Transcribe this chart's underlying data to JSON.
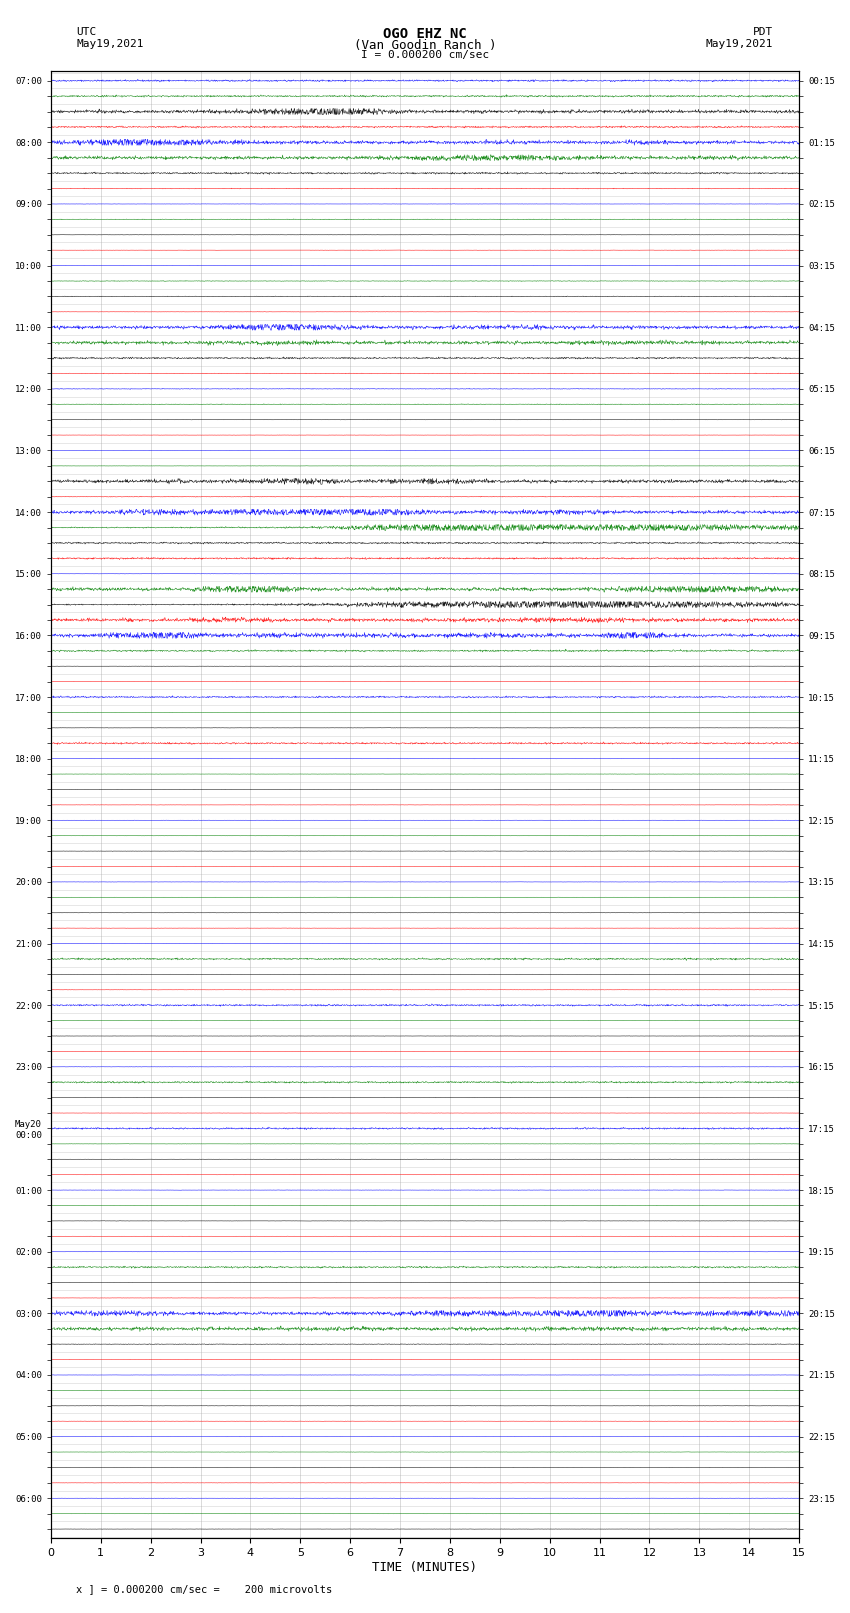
{
  "title_line1": "OGO EHZ NC",
  "title_line2": "(Van Goodin Ranch )",
  "title_line3": "I = 0.000200 cm/sec",
  "left_header_line1": "UTC",
  "left_header_line2": "May19,2021",
  "right_header_line1": "PDT",
  "right_header_line2": "May19,2021",
  "footer": "x ] = 0.000200 cm/sec =    200 microvolts",
  "xlabel": "TIME (MINUTES)",
  "bg_color": "#ffffff",
  "plot_bg_color": "#ffffff",
  "grid_color": "#aaaaaa",
  "text_color": "#000000",
  "xmin": 0,
  "xmax": 15,
  "xticks": [
    0,
    1,
    2,
    3,
    4,
    5,
    6,
    7,
    8,
    9,
    10,
    11,
    12,
    13,
    14,
    15
  ],
  "trace_colors_cycle": [
    "blue",
    "green",
    "black",
    "red"
  ],
  "left_labels": [
    "07:00",
    "",
    "",
    "",
    "08:00",
    "",
    "",
    "",
    "09:00",
    "",
    "",
    "",
    "10:00",
    "",
    "",
    "",
    "11:00",
    "",
    "",
    "",
    "12:00",
    "",
    "",
    "",
    "13:00",
    "",
    "",
    "",
    "14:00",
    "",
    "",
    "",
    "15:00",
    "",
    "",
    "",
    "16:00",
    "",
    "",
    "",
    "17:00",
    "",
    "",
    "",
    "18:00",
    "",
    "",
    "",
    "19:00",
    "",
    "",
    "",
    "20:00",
    "",
    "",
    "",
    "21:00",
    "",
    "",
    "",
    "22:00",
    "",
    "",
    "",
    "23:00",
    "",
    "",
    "",
    "May20\n00:00",
    "",
    "",
    "",
    "01:00",
    "",
    "",
    "",
    "02:00",
    "",
    "",
    "",
    "03:00",
    "",
    "",
    "",
    "04:00",
    "",
    "",
    "",
    "05:00",
    "",
    "",
    "",
    "06:00",
    "",
    ""
  ],
  "right_labels": [
    "00:15",
    "",
    "",
    "",
    "01:15",
    "",
    "",
    "",
    "02:15",
    "",
    "",
    "",
    "03:15",
    "",
    "",
    "",
    "04:15",
    "",
    "",
    "",
    "05:15",
    "",
    "",
    "",
    "06:15",
    "",
    "",
    "",
    "07:15",
    "",
    "",
    "",
    "08:15",
    "",
    "",
    "",
    "09:15",
    "",
    "",
    "",
    "10:15",
    "",
    "",
    "",
    "11:15",
    "",
    "",
    "",
    "12:15",
    "",
    "",
    "",
    "13:15",
    "",
    "",
    "",
    "14:15",
    "",
    "",
    "",
    "15:15",
    "",
    "",
    "",
    "16:15",
    "",
    "",
    "",
    "17:15",
    "",
    "",
    "",
    "18:15",
    "",
    "",
    "",
    "19:15",
    "",
    "",
    "",
    "20:15",
    "",
    "",
    "",
    "21:15",
    "",
    "",
    "",
    "22:15",
    "",
    "",
    "",
    "23:15",
    "",
    ""
  ],
  "activity_map": {
    "0": 2,
    "1": 2,
    "2": 3,
    "3": 2,
    "4": 3,
    "5": 3,
    "6": 2,
    "7": 1,
    "8": 0,
    "9": 1,
    "10": 0,
    "11": 0,
    "12": 0,
    "13": 1,
    "14": 1,
    "15": 0,
    "16": 3,
    "17": 3,
    "18": 2,
    "19": 1,
    "20": 1,
    "21": 1,
    "22": 0,
    "23": 0,
    "24": 0,
    "25": 0,
    "26": 3,
    "27": 1,
    "28": 3,
    "29": 4,
    "30": 2,
    "31": 2,
    "32": 0,
    "33": 3,
    "34": 4,
    "35": 3,
    "36": 3,
    "37": 2,
    "38": 0,
    "39": 0,
    "40": 2,
    "41": 0,
    "42": 0,
    "43": 2,
    "44": 0,
    "45": 0,
    "46": 0,
    "47": 0,
    "48": 0,
    "49": 0,
    "50": 0,
    "51": 0,
    "52": 0,
    "53": 0,
    "54": 0,
    "55": 0,
    "56": 0,
    "57": 2,
    "58": 0,
    "59": 0,
    "60": 2,
    "61": 0,
    "62": 0,
    "63": 0,
    "64": 0,
    "65": 2,
    "66": 0,
    "67": 0,
    "68": 2,
    "69": 0,
    "70": 0,
    "71": 0,
    "72": 0,
    "73": 0,
    "74": 0,
    "75": 0,
    "76": 0,
    "77": 2,
    "78": 0,
    "79": 0,
    "80": 3,
    "81": 3,
    "82": 1,
    "83": 0,
    "84": 0,
    "85": 0,
    "86": 0,
    "87": 0,
    "88": 0,
    "89": 0,
    "90": 0,
    "91": 0,
    "92": 0,
    "93": 0,
    "94": 0
  }
}
